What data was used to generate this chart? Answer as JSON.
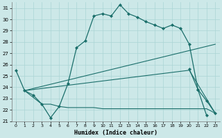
{
  "xlabel": "Humidex (Indice chaleur)",
  "main_line": {
    "x": [
      0,
      1,
      2,
      3,
      4,
      5,
      6,
      7,
      8,
      9,
      10,
      11,
      12,
      13,
      14,
      15,
      16,
      17,
      18,
      19,
      20,
      21,
      22
    ],
    "y": [
      25.5,
      23.7,
      23.3,
      22.5,
      21.3,
      22.3,
      24.3,
      27.5,
      28.1,
      30.3,
      30.5,
      30.3,
      31.3,
      30.5,
      30.2,
      29.8,
      29.5,
      29.2,
      29.5,
      29.2,
      27.8,
      23.8,
      21.5
    ]
  },
  "tail_line": {
    "x": [
      20,
      21,
      22,
      23
    ],
    "y": [
      25.6,
      23.8,
      22.8,
      21.7
    ]
  },
  "upper_env": {
    "x": [
      1,
      23
    ],
    "y": [
      23.7,
      27.8
    ]
  },
  "lower_env": {
    "x": [
      1,
      20,
      23
    ],
    "y": [
      23.7,
      25.5,
      21.7
    ]
  },
  "bottom_line": {
    "x": [
      1,
      3,
      4,
      5,
      6,
      7,
      8,
      9,
      10,
      11,
      12,
      13,
      14,
      15,
      16,
      17,
      18,
      19,
      20,
      21,
      22,
      23
    ],
    "y": [
      23.7,
      22.5,
      22.5,
      22.3,
      22.2,
      22.2,
      22.2,
      22.2,
      22.1,
      22.1,
      22.1,
      22.1,
      22.1,
      22.1,
      22.1,
      22.1,
      22.1,
      22.1,
      22.1,
      22.1,
      22.1,
      21.7
    ]
  },
  "bg_color": "#cce8e8",
  "grid_color": "#aad4d4",
  "line_color": "#1a6e6a",
  "ylim": [
    21,
    31.5
  ],
  "xlim": [
    -0.5,
    23.5
  ],
  "yticks": [
    21,
    22,
    23,
    24,
    25,
    26,
    27,
    28,
    29,
    30,
    31
  ],
  "xticks": [
    0,
    1,
    2,
    3,
    4,
    5,
    6,
    7,
    8,
    9,
    10,
    11,
    12,
    13,
    14,
    15,
    16,
    17,
    18,
    19,
    20,
    21,
    22,
    23
  ]
}
